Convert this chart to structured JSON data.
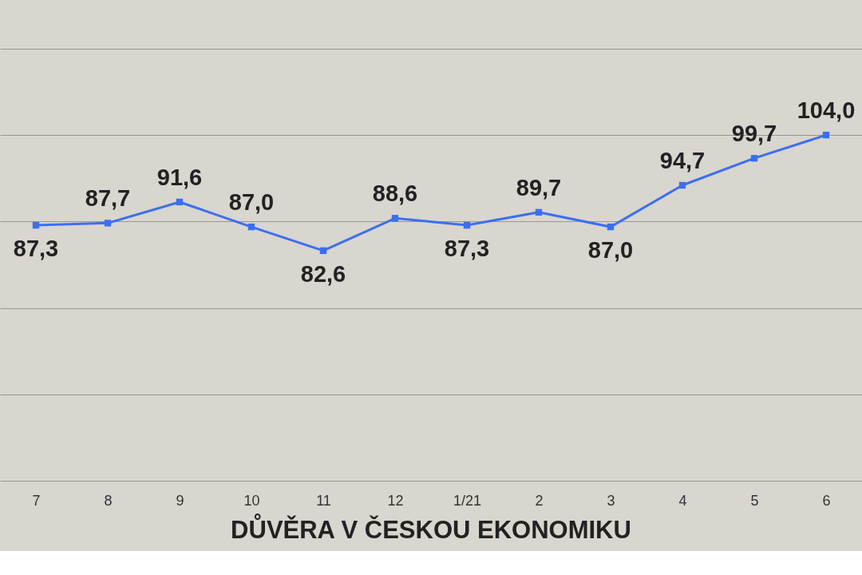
{
  "chart_data": {
    "type": "line",
    "title": "DŮVĚRA V ČESKOU EKONOMIKU",
    "categories": [
      "7",
      "8",
      "9",
      "10",
      "11",
      "12",
      "1/21",
      "2",
      "3",
      "4",
      "5",
      "6"
    ],
    "series": [
      {
        "color": "#3b6ff2",
        "values": [
          87.3,
          87.7,
          91.6,
          87.0,
          82.6,
          88.6,
          87.3,
          89.7,
          87.0,
          94.7,
          99.7,
          104.0
        ],
        "value_labels": [
          "87,3",
          "87,7",
          "91,6",
          "87,0",
          "82,6",
          "88,6",
          "87,3",
          "89,7",
          "87,0",
          "94,7",
          "99,7",
          "104,0"
        ]
      }
    ],
    "ylim": [
      40,
      129
    ],
    "yticks": [
      {
        "value": 40,
        "label": null
      },
      {
        "value": 56,
        "label": null
      },
      {
        "value": 72,
        "label": null
      },
      {
        "value": 88,
        "label": null
      },
      {
        "value": 104,
        "label": null
      },
      {
        "value": 120,
        "label": null
      }
    ],
    "tick_labels": "x",
    "grid": "y",
    "marker": "square",
    "line_style": "solid"
  }
}
